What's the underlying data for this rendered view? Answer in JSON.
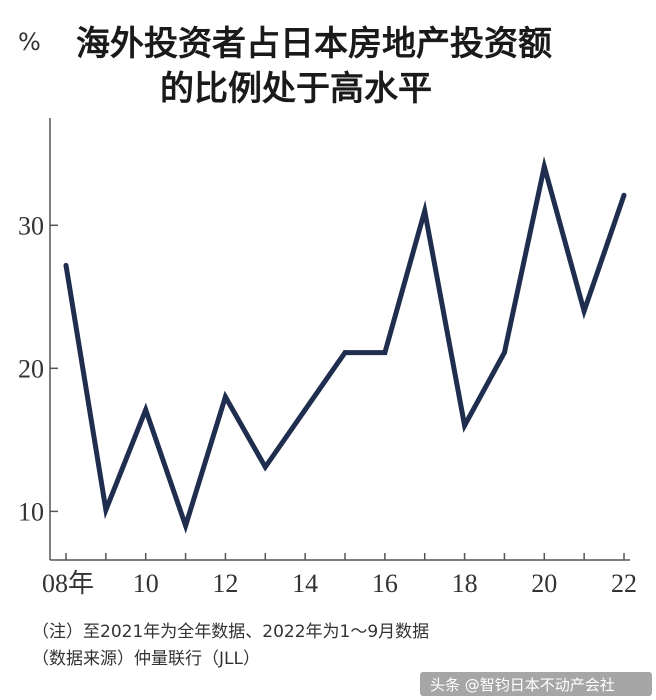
{
  "chart_data": {
    "type": "line",
    "title_line1": "海外投资者占日本房地产投资额",
    "title_line2": "的比例处于高水平",
    "y_unit": "%",
    "x": [
      2008,
      2009,
      2010,
      2011,
      2012,
      2013,
      2014,
      2015,
      2016,
      2017,
      2018,
      2019,
      2020,
      2021,
      2022
    ],
    "series": [
      {
        "values": [
          27.2,
          10.1,
          17.1,
          9.0,
          18.0,
          13.1,
          17.1,
          21.1,
          21.1,
          31.0,
          16.0,
          21.1,
          34.1,
          24.0,
          32.1
        ]
      }
    ],
    "x_tick_labels": [
      {
        "x": 2008,
        "label": "08年"
      },
      {
        "x": 2010,
        "label": "10"
      },
      {
        "x": 2012,
        "label": "12"
      },
      {
        "x": 2014,
        "label": "14"
      },
      {
        "x": 2016,
        "label": "16"
      },
      {
        "x": 2018,
        "label": "18"
      },
      {
        "x": 2020,
        "label": "20"
      },
      {
        "x": 2022,
        "label": "22"
      }
    ],
    "y_ticks": [
      10,
      20,
      30
    ],
    "xlim": [
      2008,
      2022
    ],
    "ylim": [
      6.6,
      37.5
    ],
    "line_color": "#1f2d4e",
    "grid": false
  },
  "notes": {
    "line1": "（注）至2021年为全年数据、2022年为1～9月数据",
    "line2": "（数据来源）仲量联行（JLL）"
  },
  "watermark": "头条 @智钧日本不动产会社"
}
